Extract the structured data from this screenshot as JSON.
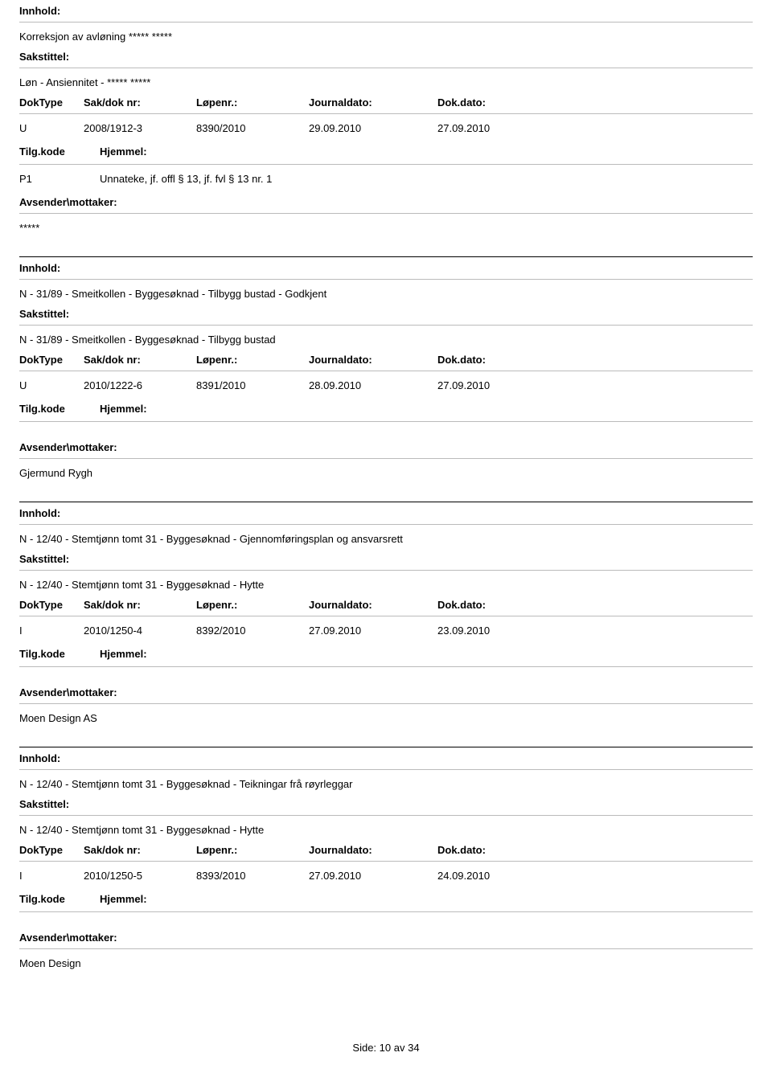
{
  "labels": {
    "innhold": "Innhold:",
    "sakstittel": "Sakstittel:",
    "doktype": "DokType",
    "sakdoknr": "Sak/dok nr:",
    "lopenr": "Løpenr.:",
    "journaldato": "Journaldato:",
    "dokdato": "Dok.dato:",
    "tilgkode": "Tilg.kode",
    "hjemmel": "Hjemmel:",
    "avsender": "Avsender\\mottaker:"
  },
  "records": [
    {
      "innhold": "Korreksjon av avløning ***** *****",
      "sakstittel": "Løn - Ansiennitet - ***** *****",
      "doktype": "U",
      "sakdoknr": "2008/1912-3",
      "lopenr": "8390/2010",
      "journaldato": "29.09.2010",
      "dokdato": "27.09.2010",
      "tilgkode": "P1",
      "hjemmel": "Unnateke, jf. offl § 13, jf. fvl § 13 nr. 1",
      "avsender": "*****",
      "first": true
    },
    {
      "innhold": "N - 31/89 - Smeitkollen - Byggesøknad - Tilbygg bustad - Godkjent",
      "sakstittel": "N - 31/89 - Smeitkollen - Byggesøknad - Tilbygg bustad",
      "doktype": "U",
      "sakdoknr": "2010/1222-6",
      "lopenr": "8391/2010",
      "journaldato": "28.09.2010",
      "dokdato": "27.09.2010",
      "tilgkode": "",
      "hjemmel": "",
      "avsender": "Gjermund Rygh"
    },
    {
      "innhold": "N - 12/40 - Stemtjønn tomt 31 - Byggesøknad - Gjennomføringsplan og ansvarsrett",
      "sakstittel": "N - 12/40 - Stemtjønn tomt 31 - Byggesøknad - Hytte",
      "doktype": "I",
      "sakdoknr": "2010/1250-4",
      "lopenr": "8392/2010",
      "journaldato": "27.09.2010",
      "dokdato": "23.09.2010",
      "tilgkode": "",
      "hjemmel": "",
      "avsender": "Moen Design AS"
    },
    {
      "innhold": "N - 12/40 - Stemtjønn tomt 31 - Byggesøknad - Teikningar frå røyrleggar",
      "sakstittel": "N - 12/40 - Stemtjønn tomt 31 - Byggesøknad - Hytte",
      "doktype": "I",
      "sakdoknr": "2010/1250-5",
      "lopenr": "8393/2010",
      "journaldato": "27.09.2010",
      "dokdato": "24.09.2010",
      "tilgkode": "",
      "hjemmel": "",
      "avsender": "Moen Design"
    }
  ],
  "footer": {
    "side_label": "Side:",
    "page": "10",
    "av": "av",
    "total": "34"
  }
}
